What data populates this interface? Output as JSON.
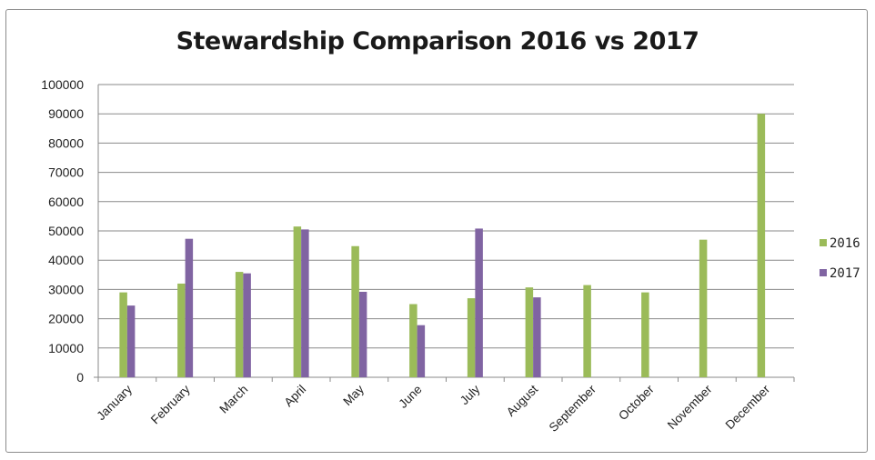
{
  "chart_data": {
    "type": "bar",
    "title": "Stewardship Comparison 2016 vs 2017",
    "xlabel": "",
    "ylabel": "",
    "ylim": [
      0,
      100000
    ],
    "yticks": [
      "0",
      "10000",
      "20000",
      "30000",
      "40000",
      "50000",
      "60000",
      "70000",
      "80000",
      "90000",
      "100000"
    ],
    "grid": true,
    "legend_position": "right",
    "categories": [
      "January",
      "February",
      "March",
      "April",
      "May",
      "June",
      "July",
      "August",
      "September",
      "October",
      "November",
      "December"
    ],
    "series": [
      {
        "name": "2016",
        "color": "#9bbb59",
        "values": [
          29000,
          32000,
          36000,
          51500,
          44800,
          25000,
          27000,
          30700,
          31500,
          29000,
          47000,
          90000
        ]
      },
      {
        "name": "2017",
        "color": "#8064a2",
        "values": [
          24500,
          47300,
          35500,
          50500,
          29200,
          17800,
          50800,
          27300,
          null,
          null,
          null,
          null
        ]
      }
    ]
  }
}
